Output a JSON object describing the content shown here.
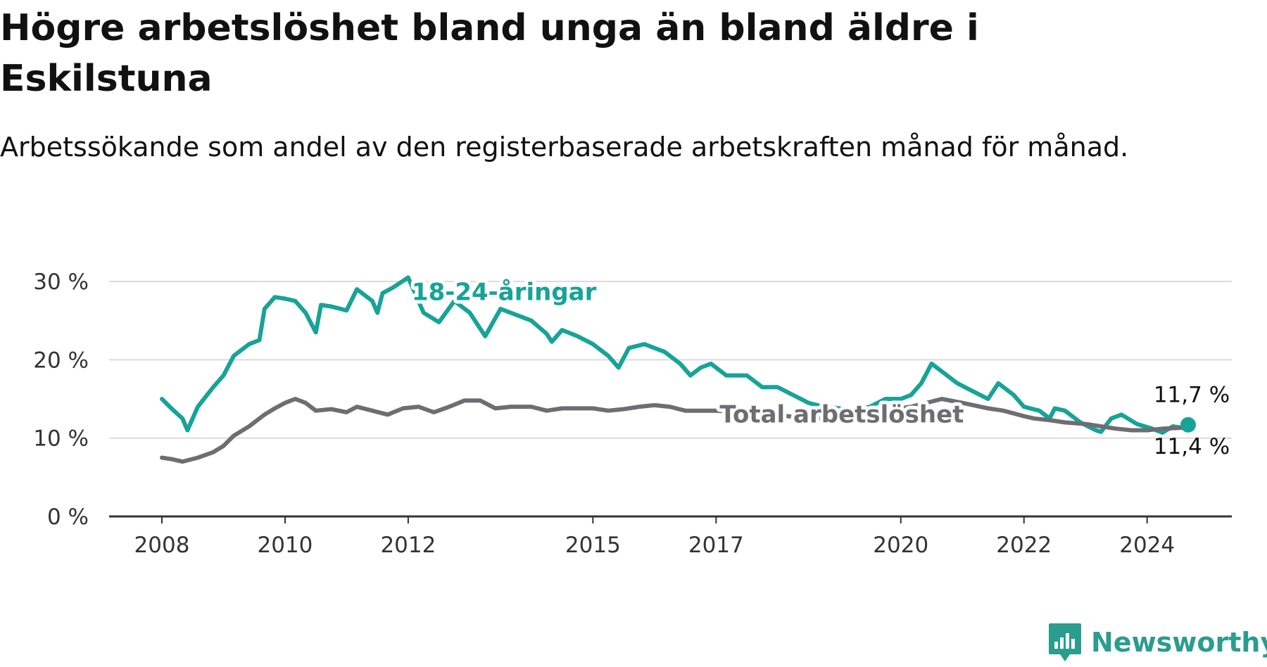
{
  "title": "Högre arbetslöshet bland unga än bland äldre i Eskilstuna",
  "subtitle": "Arbetssökande som andel av den registerbaserade arbetskraften månad för månad.",
  "brand": {
    "name": "Newsworthy",
    "icon": "newsworthy-logo-icon",
    "color": "#2a9d8f"
  },
  "chart_data": {
    "type": "line",
    "title": "Högre arbetslöshet bland unga än bland äldre i Eskilstuna",
    "subtitle": "Arbetssökande som andel av den registerbaserade arbetskraften månad för månad.",
    "xlabel": "",
    "ylabel": "",
    "x_range": [
      "2008-01",
      "2024-09"
    ],
    "x_ticks": [
      "2008",
      "2010",
      "2012",
      "2015",
      "2017",
      "2020",
      "2022",
      "2024"
    ],
    "y_ticks": [
      0,
      10,
      20,
      30
    ],
    "y_tick_labels": [
      "0 %",
      "10 %",
      "20 %",
      "30 %"
    ],
    "ylim": [
      0,
      30
    ],
    "grid": "horizontal",
    "legend": "inline labels",
    "series": [
      {
        "name": "18-24-åringar",
        "color": "#17a398",
        "end_label": "11,7 %",
        "points": [
          [
            "2008-01",
            15.0
          ],
          [
            "2008-03",
            13.7
          ],
          [
            "2008-05",
            12.5
          ],
          [
            "2008-06",
            11.0
          ],
          [
            "2008-08",
            14.0
          ],
          [
            "2008-11",
            16.5
          ],
          [
            "2009-01",
            18.0
          ],
          [
            "2009-03",
            20.5
          ],
          [
            "2009-06",
            22.0
          ],
          [
            "2009-08",
            22.5
          ],
          [
            "2009-09",
            26.5
          ],
          [
            "2009-11",
            28.0
          ],
          [
            "2010-01",
            27.8
          ],
          [
            "2010-03",
            27.5
          ],
          [
            "2010-05",
            26.0
          ],
          [
            "2010-07",
            23.5
          ],
          [
            "2010-08",
            27.0
          ],
          [
            "2010-10",
            26.8
          ],
          [
            "2011-01",
            26.3
          ],
          [
            "2011-03",
            29.0
          ],
          [
            "2011-06",
            27.5
          ],
          [
            "2011-07",
            26.0
          ],
          [
            "2011-08",
            28.5
          ],
          [
            "2011-10",
            29.2
          ],
          [
            "2012-01",
            30.5
          ],
          [
            "2012-04",
            26.0
          ],
          [
            "2012-07",
            24.8
          ],
          [
            "2012-10",
            27.5
          ],
          [
            "2013-01",
            26.0
          ],
          [
            "2013-04",
            23.0
          ],
          [
            "2013-07",
            26.5
          ],
          [
            "2014-01",
            25.0
          ],
          [
            "2014-04",
            23.3
          ],
          [
            "2014-05",
            22.3
          ],
          [
            "2014-07",
            23.8
          ],
          [
            "2014-10",
            23.0
          ],
          [
            "2015-01",
            22.0
          ],
          [
            "2015-04",
            20.5
          ],
          [
            "2015-06",
            19.0
          ],
          [
            "2015-08",
            21.5
          ],
          [
            "2015-11",
            22.0
          ],
          [
            "2016-03",
            21.0
          ],
          [
            "2016-06",
            19.5
          ],
          [
            "2016-08",
            18.0
          ],
          [
            "2016-10",
            19.0
          ],
          [
            "2016-12",
            19.5
          ],
          [
            "2017-03",
            18.0
          ],
          [
            "2017-07",
            18.0
          ],
          [
            "2017-10",
            16.5
          ],
          [
            "2018-01",
            16.5
          ],
          [
            "2018-04",
            15.5
          ],
          [
            "2018-07",
            14.5
          ],
          [
            "2018-10",
            14.0
          ],
          [
            "2019-01",
            13.8
          ],
          [
            "2019-04",
            13.5
          ],
          [
            "2019-07",
            14.0
          ],
          [
            "2019-10",
            15.0
          ],
          [
            "2020-01",
            15.0
          ],
          [
            "2020-03",
            15.5
          ],
          [
            "2020-05",
            17.0
          ],
          [
            "2020-07",
            19.5
          ],
          [
            "2020-09",
            18.5
          ],
          [
            "2020-12",
            17.0
          ],
          [
            "2021-03",
            16.0
          ],
          [
            "2021-06",
            15.0
          ],
          [
            "2021-08",
            17.0
          ],
          [
            "2021-11",
            15.5
          ],
          [
            "2022-01",
            14.0
          ],
          [
            "2022-04",
            13.5
          ],
          [
            "2022-06",
            12.5
          ],
          [
            "2022-07",
            13.8
          ],
          [
            "2022-09",
            13.5
          ],
          [
            "2022-12",
            12.0
          ],
          [
            "2023-03",
            11.0
          ],
          [
            "2023-04",
            10.8
          ],
          [
            "2023-06",
            12.5
          ],
          [
            "2023-08",
            13.0
          ],
          [
            "2023-11",
            11.8
          ],
          [
            "2024-02",
            11.2
          ],
          [
            "2024-04",
            10.7
          ],
          [
            "2024-06",
            11.5
          ],
          [
            "2024-08",
            11.3
          ],
          [
            "2024-09",
            11.7
          ]
        ]
      },
      {
        "name": "Total arbetslöshet",
        "color": "#6e6d73",
        "end_label": "11,4 %",
        "points": [
          [
            "2008-01",
            7.5
          ],
          [
            "2008-03",
            7.3
          ],
          [
            "2008-05",
            7.0
          ],
          [
            "2008-08",
            7.5
          ],
          [
            "2008-11",
            8.2
          ],
          [
            "2009-01",
            9.0
          ],
          [
            "2009-03",
            10.3
          ],
          [
            "2009-06",
            11.5
          ],
          [
            "2009-09",
            13.0
          ],
          [
            "2009-11",
            13.8
          ],
          [
            "2010-01",
            14.5
          ],
          [
            "2010-03",
            15.0
          ],
          [
            "2010-05",
            14.5
          ],
          [
            "2010-07",
            13.5
          ],
          [
            "2010-10",
            13.7
          ],
          [
            "2011-01",
            13.3
          ],
          [
            "2011-03",
            14.0
          ],
          [
            "2011-06",
            13.5
          ],
          [
            "2011-09",
            13.0
          ],
          [
            "2011-12",
            13.8
          ],
          [
            "2012-03",
            14.0
          ],
          [
            "2012-06",
            13.3
          ],
          [
            "2012-09",
            14.0
          ],
          [
            "2012-12",
            14.8
          ],
          [
            "2013-03",
            14.8
          ],
          [
            "2013-06",
            13.8
          ],
          [
            "2013-09",
            14.0
          ],
          [
            "2014-01",
            14.0
          ],
          [
            "2014-04",
            13.5
          ],
          [
            "2014-07",
            13.8
          ],
          [
            "2015-01",
            13.8
          ],
          [
            "2015-04",
            13.5
          ],
          [
            "2015-07",
            13.7
          ],
          [
            "2015-10",
            14.0
          ],
          [
            "2016-01",
            14.2
          ],
          [
            "2016-04",
            14.0
          ],
          [
            "2016-07",
            13.5
          ],
          [
            "2016-10",
            13.5
          ],
          [
            "2017-01",
            13.5
          ],
          [
            "2017-06",
            13.3
          ],
          [
            "2018-01",
            13.0
          ],
          [
            "2018-06",
            12.5
          ],
          [
            "2019-01",
            12.5
          ],
          [
            "2019-06",
            13.0
          ],
          [
            "2019-10",
            13.5
          ],
          [
            "2020-03",
            14.0
          ],
          [
            "2020-06",
            14.5
          ],
          [
            "2020-09",
            15.0
          ],
          [
            "2021-01",
            14.5
          ],
          [
            "2021-06",
            13.8
          ],
          [
            "2021-09",
            13.5
          ],
          [
            "2022-01",
            12.8
          ],
          [
            "2022-03",
            12.5
          ],
          [
            "2022-06",
            12.3
          ],
          [
            "2022-09",
            12.0
          ],
          [
            "2023-01",
            11.8
          ],
          [
            "2023-04",
            11.5
          ],
          [
            "2023-07",
            11.2
          ],
          [
            "2023-10",
            11.0
          ],
          [
            "2024-01",
            11.0
          ],
          [
            "2024-04",
            11.2
          ],
          [
            "2024-07",
            11.3
          ],
          [
            "2024-09",
            11.4
          ]
        ]
      }
    ]
  }
}
